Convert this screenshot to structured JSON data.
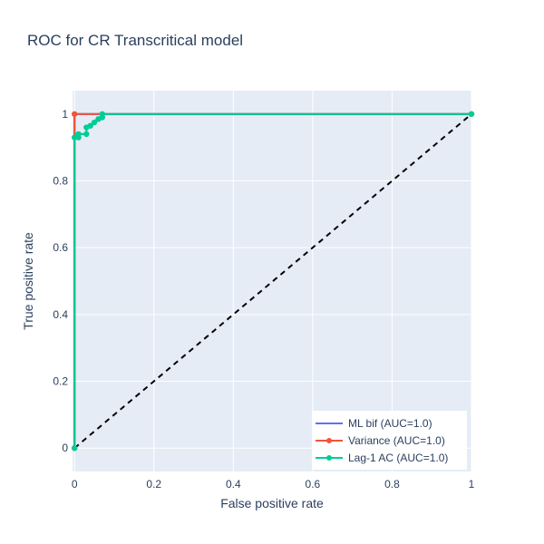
{
  "chart_data": {
    "type": "line",
    "title": "ROC for CR Transcritical model",
    "xlabel": "False positive rate",
    "ylabel": "True positive rate",
    "xlim": [
      -0.005,
      1.0
    ],
    "ylim": [
      -0.07,
      1.07
    ],
    "x_ticks": [
      0,
      0.2,
      0.4,
      0.6,
      0.8,
      1
    ],
    "y_ticks": [
      0,
      0.2,
      0.4,
      0.6,
      0.8,
      1
    ],
    "x_tick_labels": [
      "0",
      "0.2",
      "0.4",
      "0.6",
      "0.8",
      "1"
    ],
    "y_tick_labels": [
      "0",
      "0.2",
      "0.4",
      "0.6",
      "0.8",
      "1"
    ],
    "grid": true,
    "legend_position": "bottom-right",
    "background_color": "#e5ecf6",
    "series": [
      {
        "name": "ML bif (AUC=1.0)",
        "color": "#636efa",
        "markers": false,
        "x": [
          0,
          0,
          1
        ],
        "y": [
          0,
          1,
          1
        ]
      },
      {
        "name": "Variance (AUC=1.0)",
        "color": "#ef553b",
        "markers": true,
        "x": [
          0,
          0,
          1
        ],
        "y": [
          0,
          1,
          1
        ]
      },
      {
        "name": "Lag-1 AC (AUC=1.0)",
        "color": "#00cc96",
        "markers": true,
        "x": [
          0,
          0,
          0.01,
          0.01,
          0.03,
          0.03,
          0.04,
          0.05,
          0.06,
          0.07,
          0.07,
          1
        ],
        "y": [
          0,
          0.93,
          0.93,
          0.94,
          0.94,
          0.96,
          0.965,
          0.975,
          0.985,
          0.99,
          1,
          1
        ]
      }
    ],
    "reference_line": {
      "x": [
        0,
        1
      ],
      "y": [
        0,
        1
      ],
      "color": "#000000",
      "dashed": true
    }
  }
}
